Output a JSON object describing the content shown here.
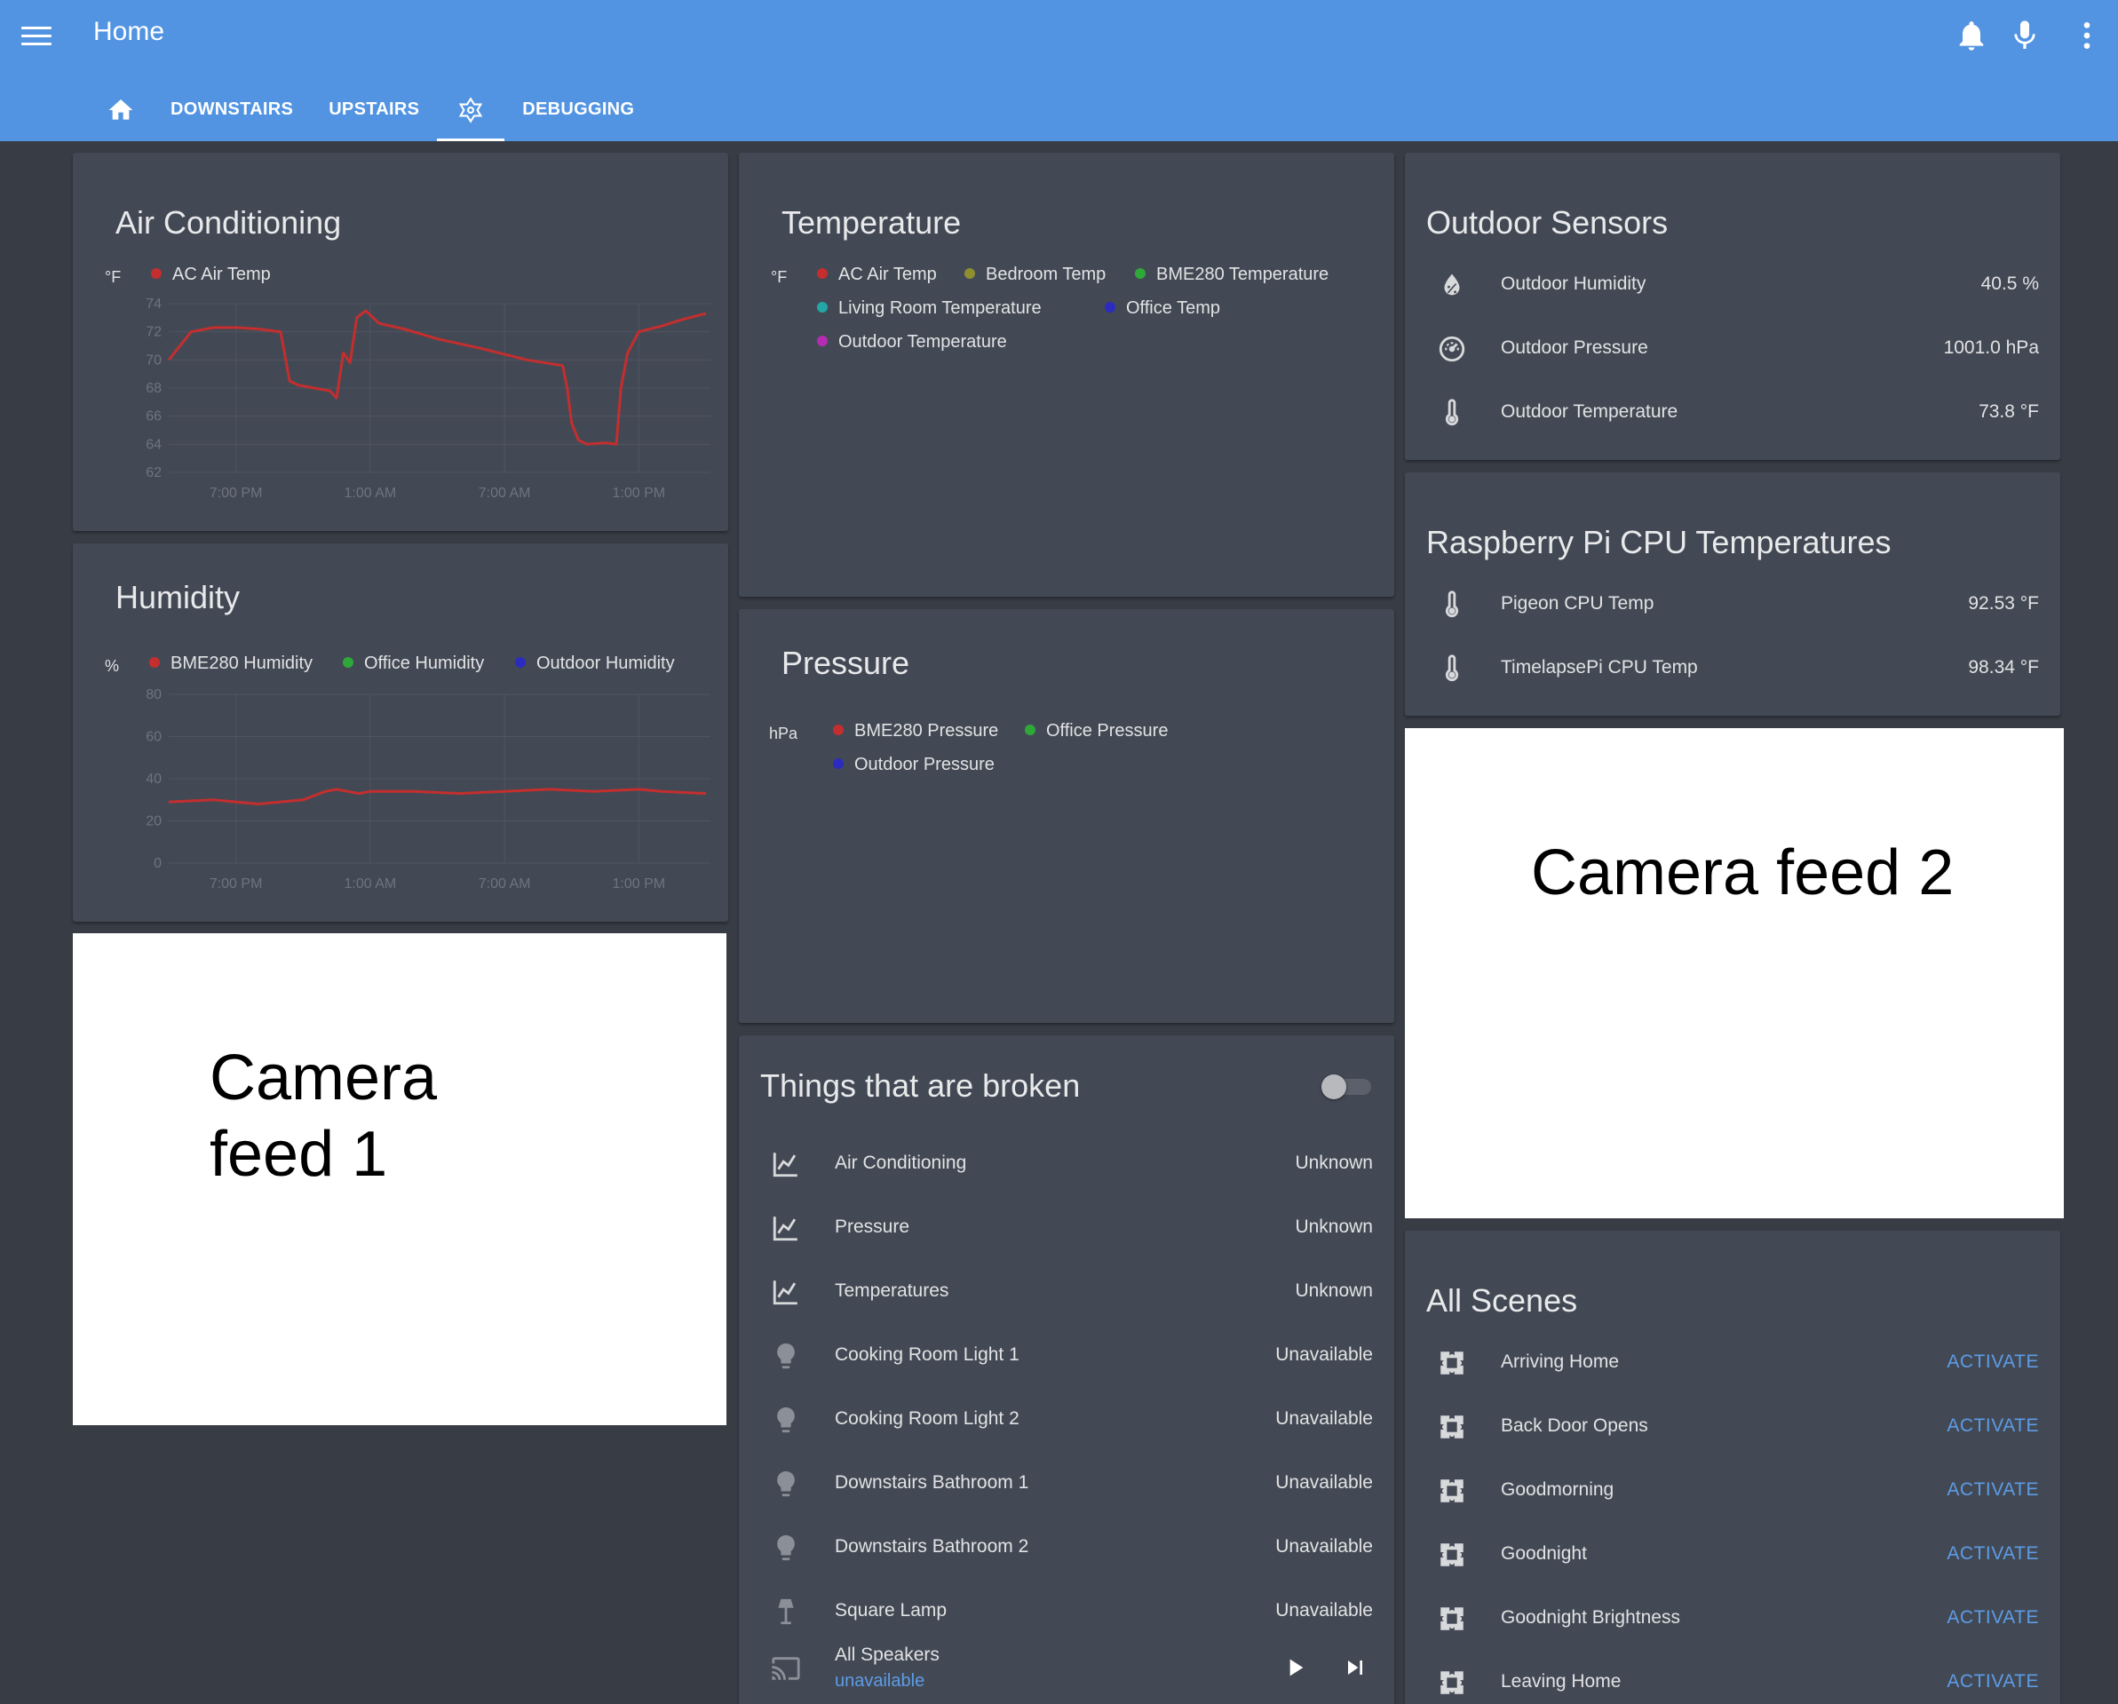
{
  "header": {
    "title": "Home",
    "tabs": [
      {
        "icon": "home-icon",
        "label": ""
      },
      {
        "icon": "",
        "label": "DOWNSTAIRS"
      },
      {
        "icon": "",
        "label": "UPSTAIRS"
      },
      {
        "icon": "hass-logo-icon",
        "label": ""
      },
      {
        "icon": "",
        "label": "DEBUGGING"
      }
    ],
    "actions": [
      "bell-icon",
      "microphone-icon",
      "more-vert-icon"
    ]
  },
  "colors": {
    "appbar": "#5294e2",
    "background": "#383c45",
    "card": "#434954",
    "accent": "#5c9ce6"
  },
  "cards": {
    "ac": {
      "title": "Air Conditioning",
      "unit": "°F",
      "legend": [
        "AC Air Temp"
      ]
    },
    "humidity": {
      "title": "Humidity",
      "unit": "%",
      "legend": [
        "BME280 Humidity",
        "Office Humidity",
        "Outdoor Humidity"
      ]
    },
    "temperature": {
      "title": "Temperature",
      "unit": "°F",
      "legend": [
        "AC Air Temp",
        "Bedroom Temp",
        "BME280 Temperature",
        "Living Room Temperature",
        "Office Temp",
        "Outdoor Temperature"
      ]
    },
    "pressure": {
      "title": "Pressure",
      "unit": "hPa",
      "legend": [
        "BME280 Pressure",
        "Office Pressure",
        "Outdoor Pressure"
      ]
    },
    "outdoor": {
      "title": "Outdoor Sensors",
      "rows": [
        {
          "icon": "water-percent-icon",
          "label": "Outdoor Humidity",
          "value": "40.5 %"
        },
        {
          "icon": "gauge-icon",
          "label": "Outdoor Pressure",
          "value": "1001.0 hPa"
        },
        {
          "icon": "thermometer-icon",
          "label": "Outdoor Temperature",
          "value": "73.8 °F"
        }
      ]
    },
    "rpi": {
      "title": "Raspberry Pi CPU Temperatures",
      "rows": [
        {
          "icon": "thermometer-icon",
          "label": "Pigeon CPU Temp",
          "value": "92.53 °F"
        },
        {
          "icon": "thermometer-icon",
          "label": "TimelapsePi CPU Temp",
          "value": "98.34 °F"
        }
      ]
    },
    "camera1": {
      "text_line1": "Camera",
      "text_line2": "feed 1"
    },
    "camera2": {
      "text": "Camera feed 2"
    },
    "broken": {
      "title": "Things that are broken",
      "toggle": "off",
      "rows": [
        {
          "icon": "chart-line-icon",
          "label": "Air Conditioning",
          "value": "Unknown"
        },
        {
          "icon": "chart-line-icon",
          "label": "Pressure",
          "value": "Unknown"
        },
        {
          "icon": "chart-line-icon",
          "label": "Temperatures",
          "value": "Unknown"
        },
        {
          "icon": "lightbulb-icon",
          "label": "Cooking Room Light 1",
          "value": "Unavailable"
        },
        {
          "icon": "lightbulb-icon",
          "label": "Cooking Room Light 2",
          "value": "Unavailable"
        },
        {
          "icon": "lightbulb-icon",
          "label": "Downstairs Bathroom 1",
          "value": "Unavailable"
        },
        {
          "icon": "lightbulb-icon",
          "label": "Downstairs Bathroom 2",
          "value": "Unavailable"
        },
        {
          "icon": "floor-lamp-icon",
          "label": "Square Lamp",
          "value": "Unavailable"
        }
      ],
      "speakers": {
        "icon": "cast-icon",
        "label": "All Speakers",
        "status": "unavailable"
      }
    },
    "scenes": {
      "title": "All Scenes",
      "action_label": "ACTIVATE",
      "rows": [
        {
          "icon": "palette-icon",
          "label": "Arriving Home"
        },
        {
          "icon": "palette-icon",
          "label": "Back Door Opens"
        },
        {
          "icon": "palette-icon",
          "label": "Goodmorning"
        },
        {
          "icon": "palette-icon",
          "label": "Goodnight"
        },
        {
          "icon": "palette-icon",
          "label": "Goodnight Brightness"
        },
        {
          "icon": "palette-icon",
          "label": "Leaving Home"
        }
      ]
    }
  },
  "chart_data": [
    {
      "id": "ac",
      "type": "line",
      "x_ticks": [
        "7:00 PM",
        "1:00 AM",
        "7:00 AM",
        "1:00 PM"
      ],
      "x_tick_pos": [
        3,
        9,
        15,
        21
      ],
      "xlim": [
        0,
        24.2
      ],
      "ylim": [
        62,
        74
      ],
      "y_ticks": [
        62,
        64,
        66,
        68,
        70,
        72,
        74
      ],
      "series": [
        {
          "name": "AC Air Temp",
          "color": "#c42e2e",
          "x": [
            0,
            1,
            2,
            3,
            4,
            5,
            5.4,
            5.8,
            6.5,
            7.2,
            7.5,
            7.8,
            8.1,
            8.4,
            8.8,
            9.4,
            10.5,
            12,
            14,
            16,
            17.6,
            17.8,
            18,
            18.3,
            18.7,
            19.5,
            20,
            20.2,
            20.5,
            21,
            22,
            23,
            24
          ],
          "y": [
            70,
            72,
            72.3,
            72.3,
            72.2,
            72,
            68.5,
            68.2,
            68,
            67.8,
            67.3,
            70.5,
            69.8,
            73,
            73.5,
            72.6,
            72.2,
            71.5,
            70.8,
            70,
            69.6,
            68,
            65.5,
            64.3,
            64,
            64.1,
            64,
            68,
            70.5,
            72,
            72.4,
            72.9,
            73.3
          ]
        }
      ]
    },
    {
      "id": "humidity",
      "type": "line",
      "x_ticks": [
        "7:00 PM",
        "1:00 AM",
        "7:00 AM",
        "1:00 PM"
      ],
      "x_tick_pos": [
        3,
        9,
        15,
        21
      ],
      "xlim": [
        0,
        24.2
      ],
      "ylim": [
        0,
        80
      ],
      "y_ticks": [
        0,
        20,
        40,
        60,
        80
      ],
      "series": [
        {
          "name": "BME280 Humidity",
          "color": "#c42e2e",
          "x": [
            0,
            2,
            4,
            6,
            6.5,
            7,
            7.5,
            8,
            8.5,
            9,
            10,
            10.5,
            11,
            13,
            15,
            17,
            19,
            21,
            22,
            24
          ],
          "y": [
            29,
            30,
            28,
            30,
            32,
            34,
            35,
            34,
            33,
            34,
            34,
            34,
            34,
            33,
            34,
            35,
            34,
            35,
            34,
            33
          ]
        }
      ]
    }
  ]
}
